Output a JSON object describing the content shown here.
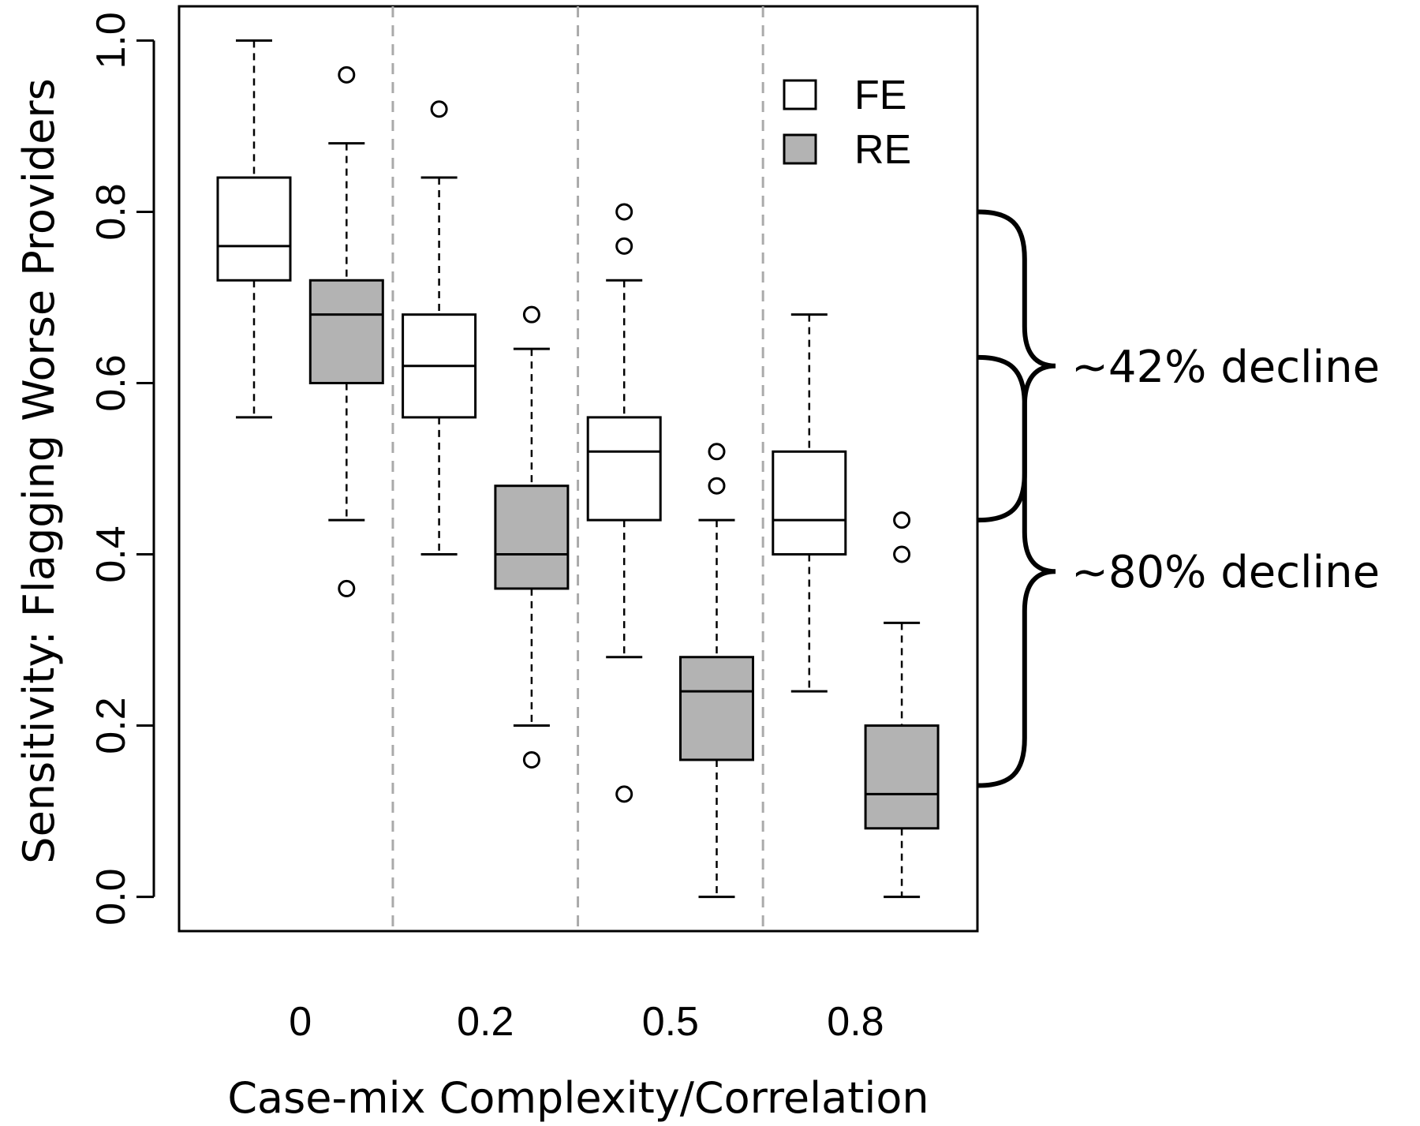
{
  "chart_data": {
    "type": "boxplot",
    "xlabel": "Case-mix Complexity/Correlation",
    "ylabel": "Sensitivity: Flagging Worse Providers",
    "ylim": [
      -0.04,
      1.04
    ],
    "yticks": [
      "0.0",
      "0.2",
      "0.4",
      "0.6",
      "0.8",
      "1.0"
    ],
    "categories": [
      "0",
      "0.2",
      "0.5",
      "0.8"
    ],
    "legend_position": "top-right",
    "grid": false,
    "series": [
      {
        "name": "FE",
        "color": "#ffffff",
        "boxes": [
          {
            "whisker_low": 0.56,
            "q1": 0.72,
            "median": 0.76,
            "q3": 0.84,
            "whisker_high": 1.0,
            "outliers": []
          },
          {
            "whisker_low": 0.4,
            "q1": 0.56,
            "median": 0.62,
            "q3": 0.68,
            "whisker_high": 0.84,
            "outliers": [
              0.92
            ]
          },
          {
            "whisker_low": 0.28,
            "q1": 0.44,
            "median": 0.52,
            "q3": 0.56,
            "whisker_high": 0.72,
            "outliers": [
              0.8,
              0.76,
              0.12
            ]
          },
          {
            "whisker_low": 0.24,
            "q1": 0.4,
            "median": 0.44,
            "q3": 0.52,
            "whisker_high": 0.68,
            "outliers": []
          }
        ]
      },
      {
        "name": "RE",
        "color": "#b3b3b3",
        "boxes": [
          {
            "whisker_low": 0.44,
            "q1": 0.6,
            "median": 0.68,
            "q3": 0.72,
            "whisker_high": 0.88,
            "outliers": [
              0.96,
              0.36
            ]
          },
          {
            "whisker_low": 0.2,
            "q1": 0.36,
            "median": 0.4,
            "q3": 0.48,
            "whisker_high": 0.64,
            "outliers": [
              0.68,
              0.16
            ]
          },
          {
            "whisker_low": 0.0,
            "q1": 0.16,
            "median": 0.24,
            "q3": 0.28,
            "whisker_high": 0.44,
            "outliers": [
              0.52,
              0.48
            ]
          },
          {
            "whisker_low": 0.0,
            "q1": 0.08,
            "median": 0.12,
            "q3": 0.2,
            "whisker_high": 0.32,
            "outliers": [
              0.44,
              0.4
            ]
          }
        ]
      }
    ],
    "annotations": [
      {
        "text": "~42% decline",
        "from": 0.8,
        "to": 0.44
      },
      {
        "text": "~80% decline",
        "from": 0.63,
        "to": 0.13
      }
    ]
  }
}
